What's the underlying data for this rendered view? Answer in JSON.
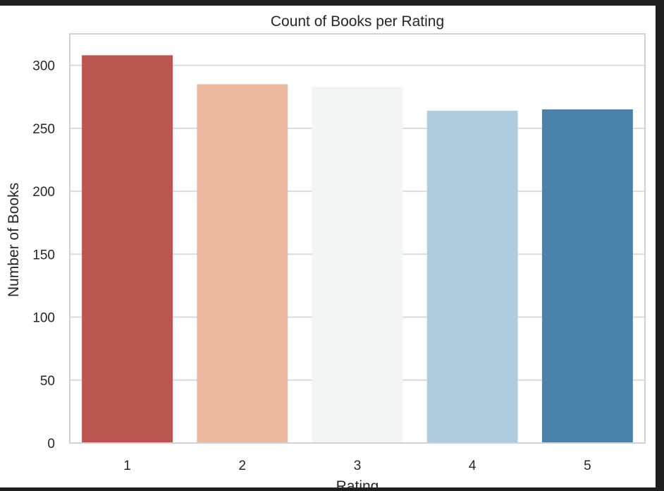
{
  "chart_data": {
    "type": "bar",
    "title": "Count of Books per Rating",
    "xlabel": "Rating",
    "ylabel": "Number of Books",
    "categories": [
      "1",
      "2",
      "3",
      "4",
      "5"
    ],
    "values": [
      308,
      285,
      283,
      264,
      265
    ],
    "colors": [
      "#b9564f",
      "#ecbaa1",
      "#f4f6f6",
      "#b0cde0",
      "#4a82ab"
    ],
    "yticks": [
      "0",
      "50",
      "100",
      "150",
      "200",
      "250",
      "300"
    ],
    "ylim": [
      0,
      325
    ],
    "grid": true,
    "legend": "none"
  },
  "theme": {
    "outer_background": "#1f1f1f",
    "frame_background": "#ffffff",
    "plot_background": "#ffffff",
    "grid_color": "#d9dbde",
    "spine_color": "#cfd2d6",
    "text_color": "#262626"
  }
}
